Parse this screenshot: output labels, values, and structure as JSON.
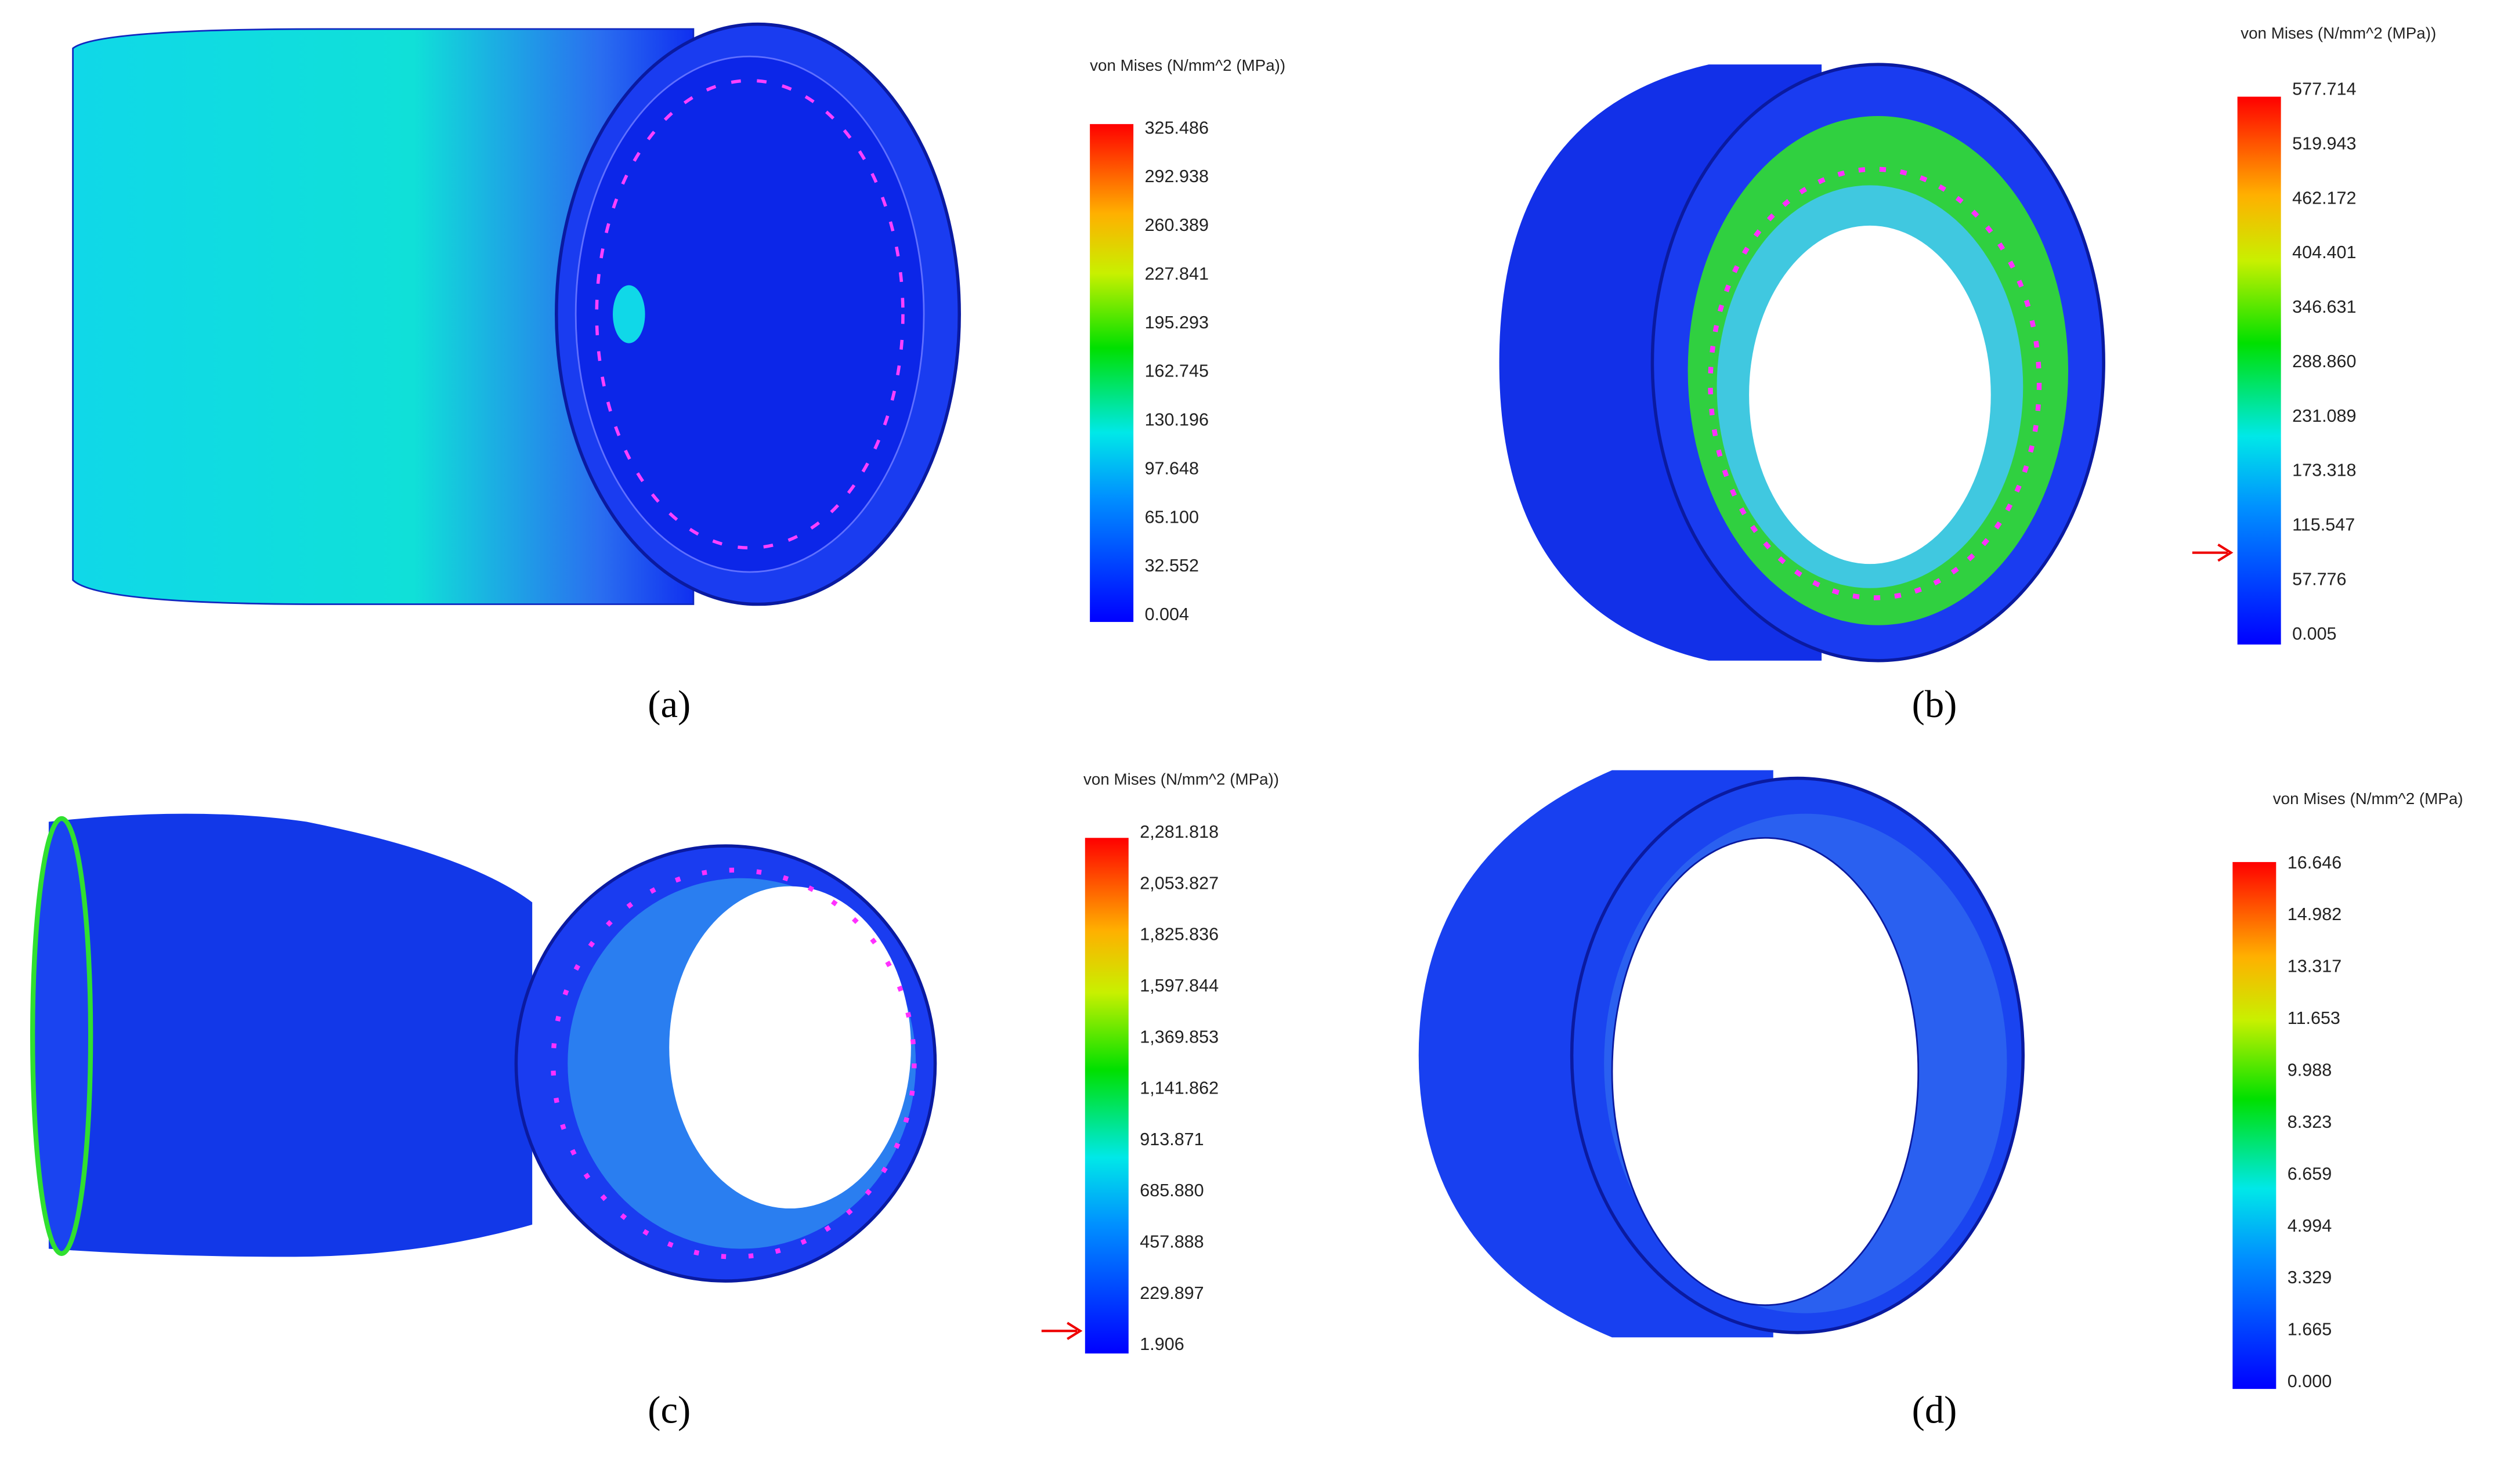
{
  "panels": [
    {
      "caption": "(a)",
      "legend_title": "von Mises (N/mm^2 (MPa))",
      "legend_ticks": [
        "325.486",
        "292.938",
        "260.389",
        "227.841",
        "195.293",
        "162.745",
        "130.196",
        "97.648",
        "65.100",
        "32.552",
        "0.004"
      ]
    },
    {
      "caption": "(b)",
      "legend_title": "von Mises (N/mm^2 (MPa))",
      "legend_ticks": [
        "577.714",
        "519.943",
        "462.172",
        "404.401",
        "346.631",
        "288.860",
        "231.089",
        "173.318",
        "115.547",
        "57.776",
        "0.005"
      ]
    },
    {
      "caption": "(c)",
      "legend_title": "von Mises (N/mm^2 (MPa))",
      "legend_ticks": [
        "2,281.818",
        "2,053.827",
        "1,825.836",
        "1,597.844",
        "1,369.853",
        "1,141.862",
        "913.871",
        "685.880",
        "457.888",
        "229.897",
        "1.906"
      ]
    },
    {
      "caption": "(d)",
      "legend_title": "von Mises (N/mm^2 (MPa)",
      "legend_ticks": [
        "16.646",
        "14.982",
        "13.317",
        "11.653",
        "9.988",
        "8.323",
        "6.659",
        "4.994",
        "3.329",
        "1.665",
        "0.000"
      ]
    }
  ]
}
